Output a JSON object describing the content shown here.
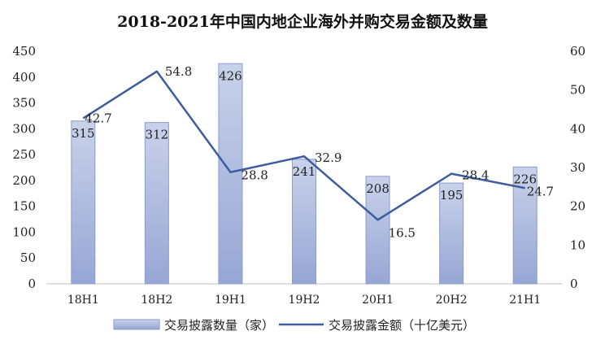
{
  "chart_data": {
    "type": "bar",
    "title": "2018-2021年中国内地企业海外并购交易金额及数量",
    "categories": [
      "18H1",
      "18H2",
      "19H1",
      "19H2",
      "20H1",
      "20H2",
      "21H1"
    ],
    "series": [
      {
        "name": "交易披露数量（家）",
        "type": "bar",
        "axis": "left",
        "values": [
          315,
          312,
          426,
          241,
          208,
          195,
          226
        ],
        "labels": [
          "315",
          "312",
          "426",
          "241",
          "208",
          "195",
          "226"
        ]
      },
      {
        "name": "交易披露金额（十亿美元）",
        "type": "line",
        "axis": "right",
        "values": [
          42.7,
          54.8,
          28.8,
          32.9,
          16.5,
          28.4,
          24.7
        ],
        "labels": [
          "42.7",
          "54.8",
          "28.8",
          "32.9",
          "16.5",
          "28.4",
          "24.7"
        ]
      }
    ],
    "y_left": {
      "min": 0,
      "max": 450,
      "ticks": [
        "0",
        "50",
        "100",
        "150",
        "200",
        "250",
        "300",
        "350",
        "400",
        "450"
      ]
    },
    "y_right": {
      "min": 0,
      "max": 60,
      "ticks": [
        "0",
        "10",
        "20",
        "30",
        "40",
        "50",
        "60"
      ]
    },
    "grid": false,
    "legend_position": "bottom",
    "colors": {
      "bar_fill_top": "#c6cfe8",
      "bar_fill_bottom": "#9aa9d6",
      "bar_stroke": "#8b9bcc",
      "line": "#3e5c9e",
      "axis": "#bfbfbf"
    }
  }
}
